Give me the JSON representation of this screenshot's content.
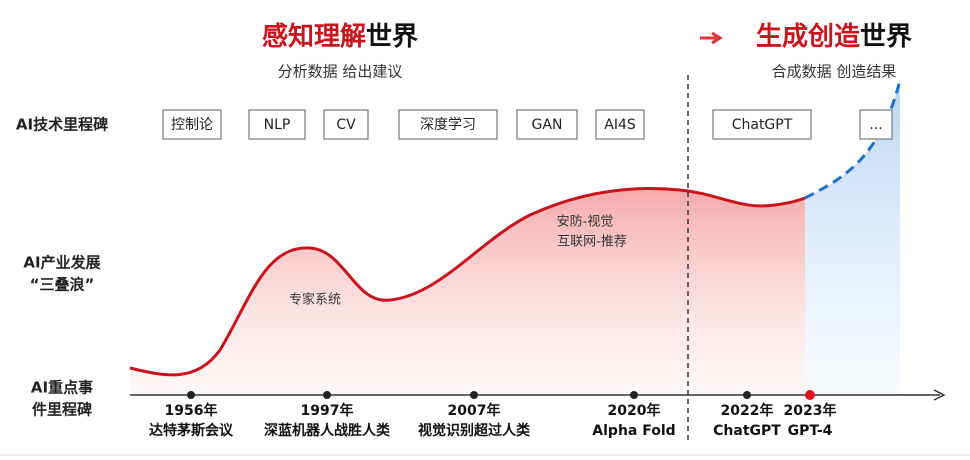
{
  "header": {
    "left": {
      "highlight": "感知理解",
      "rest": "世界",
      "subtitle": "分析数据 给出建议"
    },
    "right": {
      "highlight": "生成创造",
      "rest": "世界",
      "subtitle": "合成数据 创造结果"
    }
  },
  "row_labels": {
    "tech": "AI技术里程碑",
    "industry": [
      "AI产业发展",
      "“三叠浪”"
    ],
    "events": [
      "AI重点事",
      "件里程碑"
    ]
  },
  "tech_milestones": [
    "控制论",
    "NLP",
    "CV",
    "深度学习",
    "GAN",
    "AI4S",
    "ChatGPT",
    "..."
  ],
  "waves": [
    "专家系统",
    "安防-视觉",
    "互联网-推荐"
  ],
  "events": [
    {
      "year": "1956年",
      "label": "达特茅斯会议"
    },
    {
      "year": "1997年",
      "label": "深蓝机器人战胜人类"
    },
    {
      "year": "2007年",
      "label": "视觉识别超过人类"
    },
    {
      "year": "2020年",
      "label": "Alpha Fold"
    },
    {
      "year": "2022年",
      "label": "ChatGPT"
    },
    {
      "year": "2023年",
      "label": "GPT-4"
    }
  ]
}
